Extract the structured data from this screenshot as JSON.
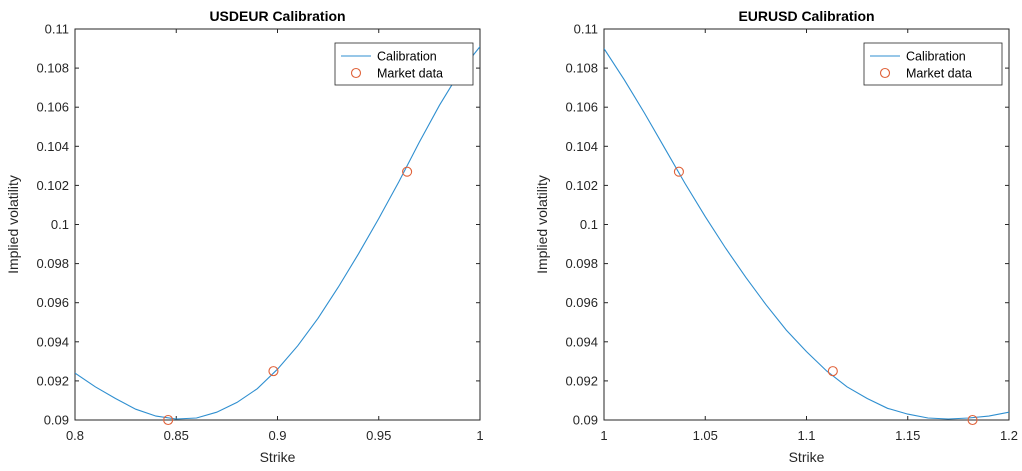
{
  "colors": {
    "curve": "#2f8fd0",
    "marker": "#e0623a",
    "axis": "#262626"
  },
  "chart_data": [
    {
      "type": "line",
      "title": "USDEUR Calibration",
      "xlabel": "Strike",
      "ylabel": "Implied volatility",
      "xlim": [
        0.8,
        1.0
      ],
      "ylim": [
        0.09,
        0.11
      ],
      "xticks": [
        "0.8",
        "0.85",
        "0.9",
        "0.95",
        "1"
      ],
      "yticks": [
        "0.09",
        "0.092",
        "0.094",
        "0.096",
        "0.098",
        "0.1",
        "0.102",
        "0.104",
        "0.106",
        "0.108",
        "0.11"
      ],
      "legend_position": "top-right",
      "series": [
        {
          "name": "Calibration",
          "style": "line",
          "x": [
            0.8,
            0.81,
            0.82,
            0.83,
            0.84,
            0.85,
            0.86,
            0.87,
            0.88,
            0.89,
            0.9,
            0.91,
            0.92,
            0.93,
            0.94,
            0.95,
            0.96,
            0.97,
            0.98,
            0.99,
            1.0
          ],
          "y": [
            0.0924,
            0.0917,
            0.0911,
            0.09055,
            0.0902,
            0.09005,
            0.0901,
            0.0904,
            0.0909,
            0.0916,
            0.0926,
            0.0938,
            0.0952,
            0.0968,
            0.0985,
            0.1003,
            0.1022,
            0.1042,
            0.1061,
            0.1078,
            0.1091
          ]
        },
        {
          "name": "Market data",
          "style": "marker",
          "x": [
            0.846,
            0.898,
            0.964
          ],
          "y": [
            0.09,
            0.0925,
            0.1027
          ]
        }
      ]
    },
    {
      "type": "line",
      "title": "EURUSD Calibration",
      "xlabel": "Strike",
      "ylabel": "Implied volatility",
      "xlim": [
        1.0,
        1.2
      ],
      "ylim": [
        0.09,
        0.11
      ],
      "xticks": [
        "1",
        "1.05",
        "1.1",
        "1.15",
        "1.2"
      ],
      "yticks": [
        "0.09",
        "0.092",
        "0.094",
        "0.096",
        "0.098",
        "0.1",
        "0.102",
        "0.104",
        "0.106",
        "0.108",
        "0.11"
      ],
      "legend_position": "top-right",
      "series": [
        {
          "name": "Calibration",
          "style": "line",
          "x": [
            1.0,
            1.01,
            1.02,
            1.03,
            1.04,
            1.05,
            1.06,
            1.07,
            1.08,
            1.09,
            1.1,
            1.11,
            1.12,
            1.13,
            1.14,
            1.15,
            1.16,
            1.17,
            1.18,
            1.19,
            1.2
          ],
          "y": [
            0.109,
            0.1074,
            0.1057,
            0.1039,
            0.1021,
            0.1004,
            0.0988,
            0.0973,
            0.0959,
            0.0946,
            0.0935,
            0.0925,
            0.0917,
            0.0911,
            0.0906,
            0.0903,
            0.0901,
            0.09005,
            0.0901,
            0.0902,
            0.0904
          ]
        },
        {
          "name": "Market data",
          "style": "marker",
          "x": [
            1.037,
            1.113,
            1.182
          ],
          "y": [
            0.1027,
            0.0925,
            0.09
          ]
        }
      ]
    }
  ]
}
